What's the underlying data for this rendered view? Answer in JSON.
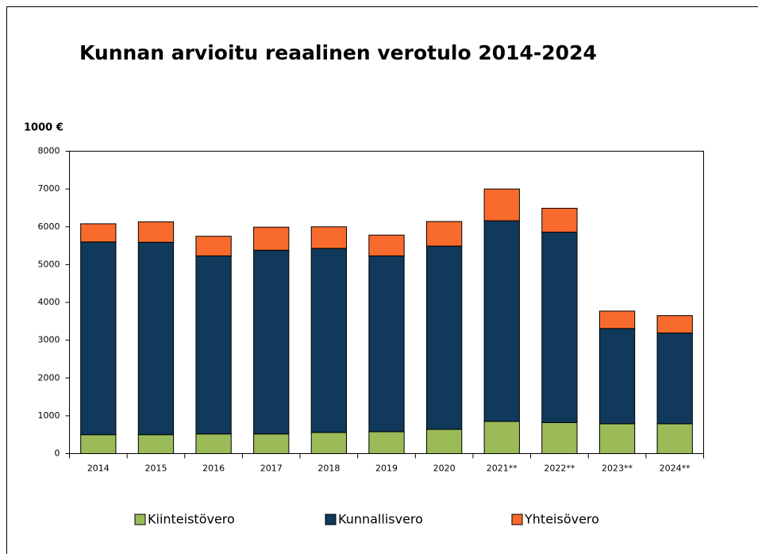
{
  "chart_data": {
    "type": "stacked_bar",
    "title": "Kunnan arvioitu reaalinen verotulo 2014-2024",
    "y_axis_label": "1000 €",
    "categories": [
      "2014",
      "2015",
      "2016",
      "2017",
      "2018",
      "2019",
      "2020",
      "2021**",
      "2022**",
      "2023**",
      "2024**"
    ],
    "series": [
      {
        "name": "Kiinteistövero",
        "color": "#9bbb59",
        "values": [
          500,
          500,
          520,
          520,
          560,
          580,
          640,
          850,
          820,
          790,
          790
        ]
      },
      {
        "name": "Kunnallisvero",
        "color": "#10395b",
        "values": [
          5100,
          5090,
          4710,
          4860,
          4870,
          4650,
          4850,
          5310,
          5040,
          2520,
          2400
        ]
      },
      {
        "name": "Yhteisövero",
        "color": "#f96b2c",
        "values": [
          480,
          540,
          520,
          610,
          570,
          550,
          650,
          840,
          630,
          460,
          460
        ]
      }
    ],
    "ylim": [
      0,
      8000
    ],
    "yticks": [
      0,
      1000,
      2000,
      3000,
      4000,
      5000,
      6000,
      7000,
      8000
    ],
    "legend": "bottom"
  }
}
